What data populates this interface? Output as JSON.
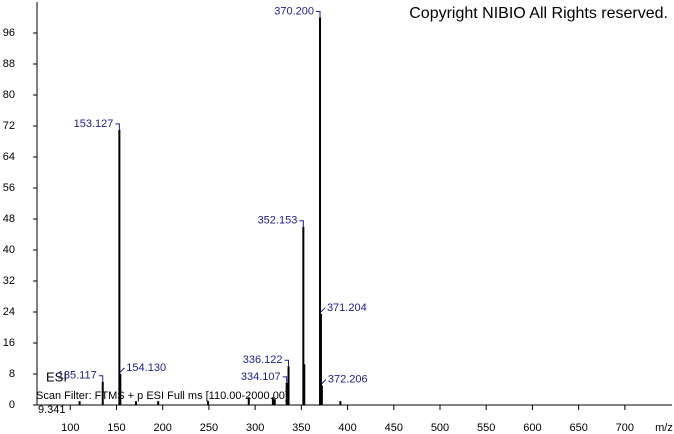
{
  "chart_data": {
    "type": "stem",
    "copyright": "Copyright NIBIO All Rights reserved.",
    "scan_filter": "Scan Filter: FTMS + p ESI Full ms [110.00-2000.00]",
    "ion_mode": "ESI",
    "retention_note": "9.341",
    "x_label": "m/z",
    "x": [
      110.1,
      135.117,
      153.127,
      154.13,
      171.1,
      195.1,
      249.1,
      293.1,
      319.2,
      321.2,
      334.107,
      336.122,
      352.153,
      353.16,
      370.2,
      371.204,
      372.206,
      392.2
    ],
    "x_labels": [
      null,
      "135.117",
      "153.127",
      "154.130",
      null,
      null,
      null,
      null,
      null,
      null,
      "334.107",
      "336.122",
      "352.153",
      null,
      "370.200",
      "371.204",
      "372.206",
      null
    ],
    "values": [
      1,
      6,
      71,
      8,
      1,
      1,
      1,
      2,
      2,
      1.5,
      5.7,
      10,
      46,
      10.5,
      100,
      23.5,
      5,
      1
    ],
    "color": "#000000",
    "label_color": "#1c1c8c",
    "xlim": [
      64,
      751
    ],
    "xticks": [
      100,
      150,
      200,
      250,
      300,
      350,
      400,
      450,
      500,
      550,
      600,
      650,
      700
    ],
    "ylim": [
      0,
      104
    ],
    "yticks": [
      0,
      8,
      16,
      24,
      32,
      40,
      48,
      56,
      64,
      72,
      80,
      88,
      96
    ]
  }
}
